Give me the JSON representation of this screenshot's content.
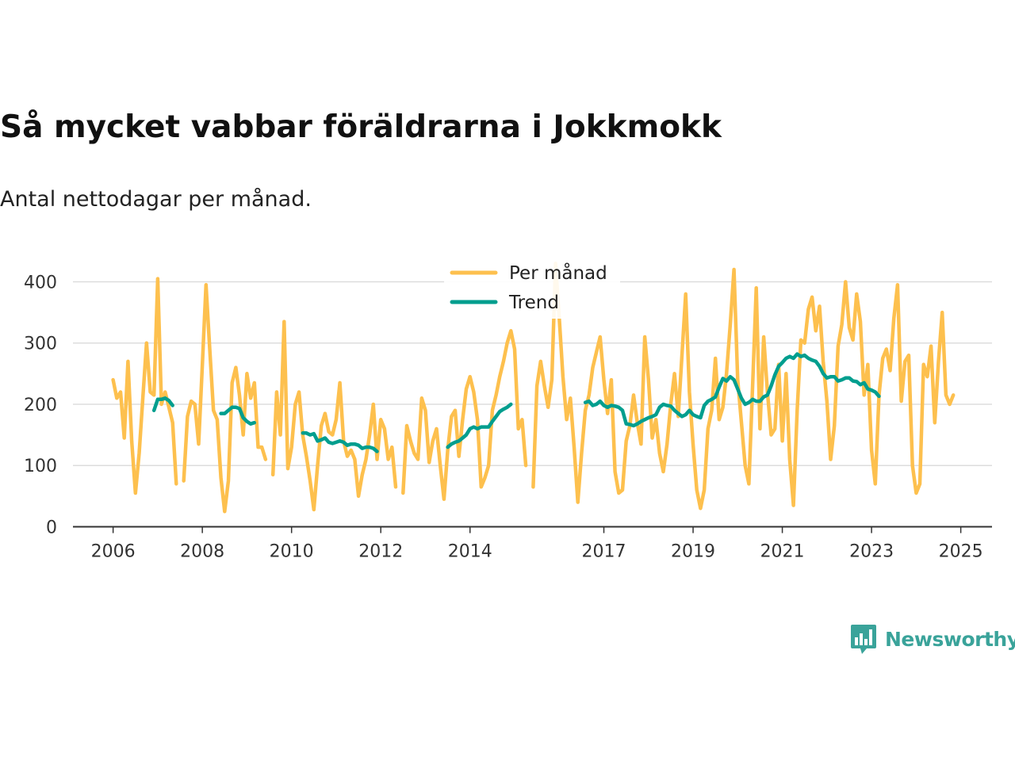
{
  "header": {
    "title": "Så mycket vabbar föräldrarna i Jokkmokk",
    "subtitle": "Antal nettodagar per månad."
  },
  "brand": {
    "name": "Newsworthy",
    "icon": "newsworthy-logo-icon",
    "color": "#3aa39a"
  },
  "colors": {
    "monthly": "#fdc04e",
    "trend": "#009e8e",
    "grid": "#dddddd",
    "axis": "#333333"
  },
  "chart_data": {
    "type": "line",
    "title": "Så mycket vabbar föräldrarna i Jokkmokk",
    "subtitle": "Antal nettodagar per månad.",
    "xlabel": "",
    "ylabel": "",
    "xlim": [
      2005.1,
      2025.7
    ],
    "ylim": [
      0,
      420
    ],
    "grid": true,
    "legend_position": "top-center",
    "x_ticks": [
      2006,
      2008,
      2010,
      2012,
      2014,
      2017,
      2019,
      2021,
      2023,
      2025
    ],
    "x_tick_labels": [
      "2006",
      "2008",
      "2010",
      "2012",
      "2014",
      "2017",
      "2019",
      "2021",
      "2023",
      "2025"
    ],
    "y_ticks": [
      0,
      100,
      200,
      300,
      400
    ],
    "y_tick_labels": [
      "0",
      "100",
      "200",
      "300",
      "400"
    ],
    "series": [
      {
        "name": "Per månad",
        "color": "#fdc04e",
        "x_start": 2006.0,
        "step": 0.0833333,
        "values": [
          240,
          210,
          220,
          145,
          270,
          140,
          55,
          120,
          210,
          300,
          220,
          215,
          405,
          200,
          220,
          195,
          170,
          70,
          null,
          75,
          180,
          205,
          200,
          135,
          265,
          395,
          290,
          190,
          175,
          80,
          25,
          75,
          235,
          260,
          215,
          150,
          250,
          210,
          235,
          130,
          130,
          110,
          null,
          85,
          220,
          150,
          335,
          95,
          130,
          200,
          220,
          150,
          115,
          75,
          28,
          100,
          165,
          185,
          155,
          150,
          175,
          235,
          140,
          115,
          125,
          110,
          50,
          85,
          110,
          150,
          200,
          110,
          175,
          160,
          110,
          130,
          65,
          null,
          55,
          165,
          140,
          120,
          110,
          210,
          190,
          105,
          140,
          160,
          100,
          45,
          125,
          180,
          190,
          115,
          175,
          225,
          245,
          220,
          175,
          65,
          80,
          100,
          190,
          215,
          245,
          270,
          300,
          320,
          290,
          160,
          175,
          100,
          null,
          65,
          230,
          270,
          230,
          195,
          240,
          430,
          340,
          245,
          175,
          210,
          130,
          40,
          120,
          190,
          215,
          260,
          285,
          310,
          240,
          185,
          240,
          90,
          55,
          60,
          140,
          165,
          215,
          170,
          135,
          310,
          240,
          145,
          175,
          120,
          90,
          135,
          200,
          250,
          180,
          280,
          380,
          220,
          135,
          60,
          30,
          60,
          160,
          190,
          275,
          175,
          195,
          250,
          330,
          420,
          240,
          170,
          100,
          70,
          230,
          390,
          160,
          310,
          220,
          150,
          160,
          265,
          140,
          250,
          110,
          35,
          190,
          305,
          300,
          355,
          375,
          320,
          360,
          270,
          205,
          110,
          165,
          295,
          330,
          400,
          325,
          305,
          380,
          335,
          215,
          265,
          125,
          70,
          215,
          275,
          290,
          255,
          340,
          395,
          205,
          270,
          280,
          100,
          55,
          70,
          265,
          245,
          295,
          170,
          270,
          350,
          215,
          200,
          215
        ]
      },
      {
        "name": "Trend",
        "color": "#009e8e",
        "x_start": 2006.9167,
        "step": 0.0833333,
        "values": [
          190,
          208,
          208,
          210,
          206,
          198,
          null,
          null,
          null,
          null,
          null,
          null,
          null,
          null,
          null,
          null,
          null,
          null,
          185,
          185,
          190,
          195,
          195,
          193,
          178,
          172,
          168,
          170,
          null,
          null,
          null,
          null,
          null,
          null,
          null,
          null,
          null,
          null,
          null,
          null,
          153,
          153,
          150,
          152,
          140,
          142,
          145,
          138,
          136,
          138,
          140,
          138,
          133,
          135,
          135,
          133,
          128,
          130,
          130,
          128,
          123,
          null,
          null,
          null,
          null,
          null,
          null,
          null,
          null,
          null,
          null,
          null,
          null,
          null,
          null,
          null,
          null,
          null,
          null,
          130,
          135,
          138,
          140,
          145,
          150,
          160,
          163,
          160,
          163,
          163,
          163,
          172,
          180,
          188,
          192,
          195,
          200,
          null,
          null,
          null,
          null,
          null,
          null,
          null,
          null,
          null,
          null,
          null,
          null,
          null,
          null,
          null,
          null,
          null,
          null,
          null,
          203,
          205,
          198,
          200,
          205,
          198,
          195,
          198,
          197,
          195,
          190,
          168,
          167,
          165,
          168,
          172,
          175,
          178,
          180,
          183,
          195,
          200,
          198,
          197,
          190,
          185,
          180,
          183,
          190,
          183,
          180,
          178,
          198,
          205,
          208,
          212,
          228,
          242,
          238,
          245,
          240,
          225,
          210,
          200,
          203,
          208,
          205,
          205,
          212,
          215,
          230,
          248,
          262,
          268,
          275,
          278,
          275,
          282,
          278,
          280,
          275,
          272,
          270,
          262,
          250,
          243,
          245,
          245,
          238,
          240,
          243,
          243,
          238,
          237,
          232,
          235,
          225,
          223,
          220,
          213
        ]
      }
    ]
  }
}
